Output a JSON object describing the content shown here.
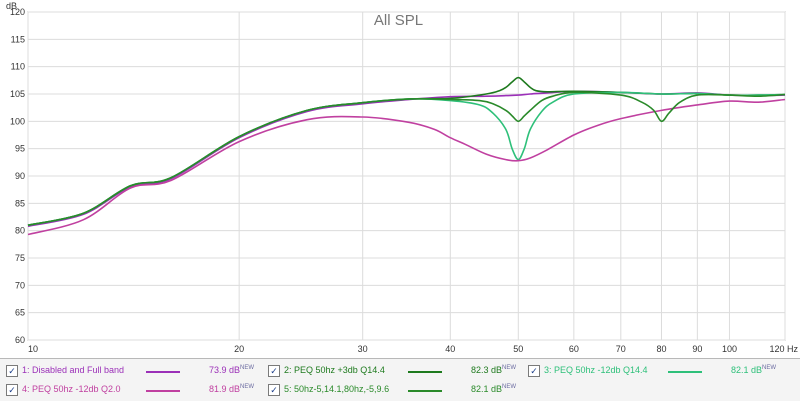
{
  "chart_data": {
    "type": "line",
    "title": "All SPL",
    "y_unit": "dB",
    "x_unit": "Hz",
    "x_scale": "log",
    "xlim": [
      10,
      120
    ],
    "ylim": [
      60,
      120
    ],
    "grid": true,
    "y_ticks": [
      "60",
      "65",
      "70",
      "75",
      "80",
      "85",
      "90",
      "95",
      "100",
      "105",
      "110",
      "115",
      "120"
    ],
    "x_ticks": [
      {
        "v": 10,
        "label": "10"
      },
      {
        "v": 20,
        "label": "20"
      },
      {
        "v": 30,
        "label": "30"
      },
      {
        "v": 40,
        "label": "40"
      },
      {
        "v": 50,
        "label": "50"
      },
      {
        "v": 60,
        "label": "60"
      },
      {
        "v": 70,
        "label": "70"
      },
      {
        "v": 80,
        "label": "80"
      },
      {
        "v": 90,
        "label": "90"
      },
      {
        "v": 100,
        "label": "100"
      },
      {
        "v": 120,
        "label": "120 Hz"
      }
    ],
    "series": [
      {
        "name": "1: Disabled and Full band",
        "color": "#9b30b8",
        "spl": "73.9 dB",
        "x": [
          10,
          12,
          14,
          16,
          20,
          25,
          30,
          35,
          40,
          45,
          48,
          50,
          52,
          55,
          60,
          70,
          80,
          90,
          100,
          110,
          120
        ],
        "y": [
          80.8,
          83,
          88,
          89.5,
          97,
          101.8,
          103.2,
          104,
          104.5,
          104.6,
          104.7,
          104.8,
          105,
          105.2,
          105.5,
          105.3,
          105,
          105.2,
          104.8,
          104.7,
          104.8
        ]
      },
      {
        "name": "2: PEQ 50hz +3db Q14.4",
        "color": "#1e7a1e",
        "spl": "82.3 dB",
        "x": [
          10,
          12,
          14,
          16,
          20,
          25,
          30,
          35,
          40,
          45,
          47,
          48,
          49,
          50,
          51,
          52,
          53,
          55,
          60,
          70,
          80,
          90,
          100,
          110,
          120
        ],
        "y": [
          81,
          83.2,
          88.2,
          89.7,
          97.2,
          102,
          103.4,
          104.1,
          104.2,
          105,
          105.6,
          106.2,
          107.2,
          108,
          107.2,
          106.2,
          105.6,
          105.4,
          105.5,
          105.3,
          105,
          105.1,
          104.8,
          104.8,
          104.9
        ]
      },
      {
        "name": "3: PEQ 50hz -12db Q14.4",
        "color": "#2ec07a",
        "spl": "82.1 dB",
        "x": [
          10,
          12,
          14,
          16,
          20,
          25,
          30,
          35,
          40,
          44,
          46,
          48,
          49,
          50,
          51,
          52,
          54,
          56,
          60,
          70,
          80,
          90,
          100,
          110,
          120
        ],
        "y": [
          81,
          83.2,
          88.2,
          89.7,
          97.2,
          102,
          103.4,
          104.1,
          103.8,
          103,
          101.5,
          98.5,
          95,
          93,
          95,
          98.5,
          101.8,
          103.5,
          105,
          105.3,
          105,
          105.1,
          104.8,
          104.8,
          104.9
        ]
      },
      {
        "name": "4: PEQ 50hz -12db Q2.0",
        "color": "#c040a0",
        "spl": "81.9 dB",
        "x": [
          10,
          12,
          14,
          16,
          20,
          25,
          30,
          35,
          38,
          40,
          42,
          45,
          48,
          50,
          52,
          55,
          60,
          65,
          70,
          80,
          90,
          100,
          110,
          120
        ],
        "y": [
          79.3,
          82,
          87.8,
          89.2,
          96.3,
          100.3,
          100.8,
          99.8,
          98.5,
          97,
          95.8,
          94,
          93,
          92.8,
          93.3,
          94.8,
          97.5,
          99.3,
          100.5,
          102,
          103,
          103.7,
          103.5,
          104
        ]
      },
      {
        "name": "5: 50hz-5,14.1,80hz,-5,9.6",
        "color": "#2a8a2a",
        "spl": "82.1 dB",
        "x": [
          10,
          12,
          14,
          16,
          20,
          25,
          30,
          35,
          40,
          44,
          46,
          48,
          49,
          50,
          51,
          52,
          54,
          56,
          60,
          70,
          75,
          78,
          80,
          82,
          85,
          90,
          100,
          110,
          120
        ],
        "y": [
          81,
          83.2,
          88.2,
          89.7,
          97.2,
          102,
          103.4,
          104.1,
          104,
          103.8,
          103.2,
          102,
          101,
          100,
          101,
          102,
          103.8,
          104.6,
          105.3,
          104.8,
          103.5,
          102,
          100,
          101.5,
          103.5,
          104.8,
          104.8,
          104.6,
          104.9
        ]
      }
    ],
    "legend_sup": "NEW"
  },
  "legend_checkmark": "✓"
}
